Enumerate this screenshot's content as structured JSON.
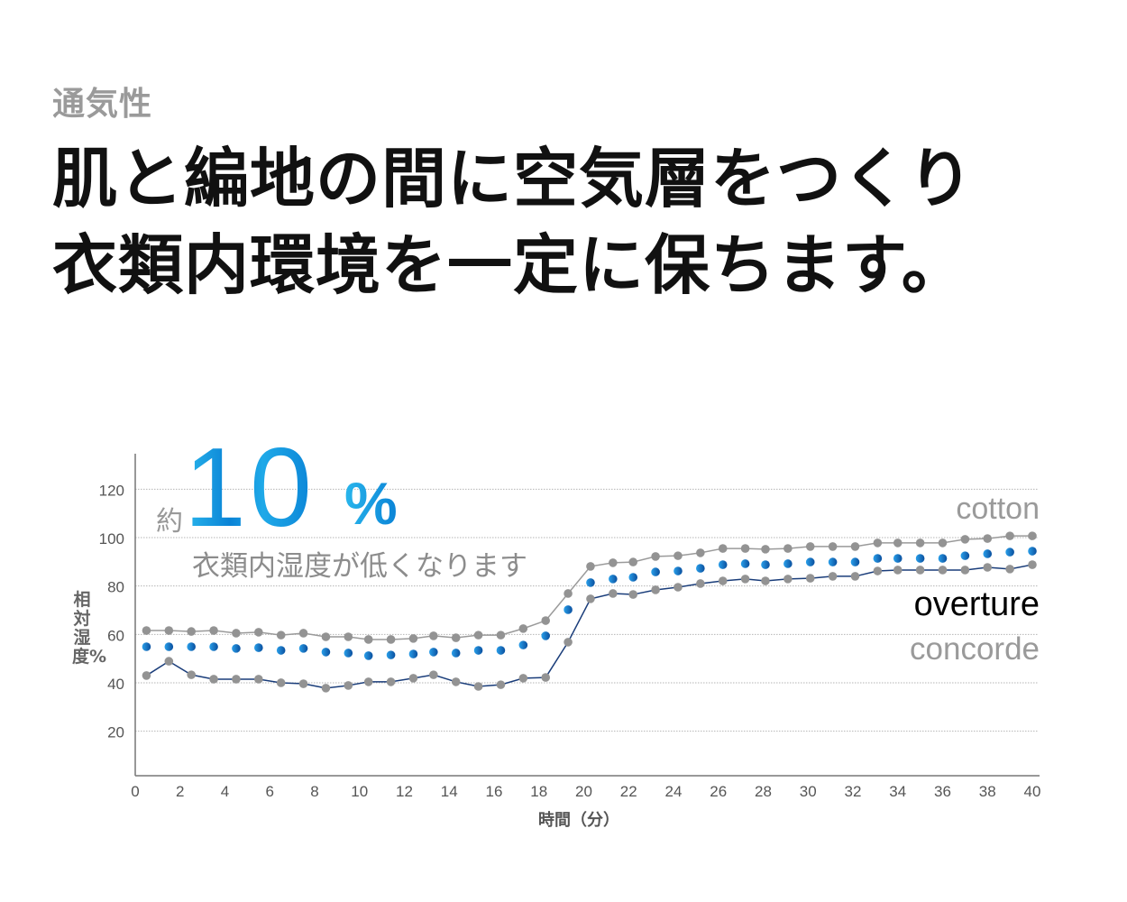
{
  "eyebrow": "通気性",
  "headline": [
    "肌と編地の間に空気層をつくり",
    "衣類内環境を一定に保ちます。"
  ],
  "callout": {
    "prefix": "約",
    "number": "10",
    "unit": "%",
    "text": "衣類内湿度が低くなります"
  },
  "colors": {
    "cotton": "#9a9a9a",
    "overture": "#0a6cc4",
    "concorde_line": "#1a3d7a",
    "marker_gray": "#939393",
    "accent": "#0a83d6"
  },
  "chart_data": {
    "type": "line",
    "xlabel": "時間（分）",
    "ylabel": "相対湿度%",
    "xlim": [
      0,
      40
    ],
    "ylim": [
      0,
      130
    ],
    "xticks": [
      "0",
      "2",
      "4",
      "6",
      "8",
      "10",
      "12",
      "14",
      "16",
      "18",
      "20",
      "22",
      "24",
      "26",
      "28",
      "30",
      "32",
      "34",
      "36",
      "38",
      "40"
    ],
    "yticks": [
      "20",
      "40",
      "60",
      "80",
      "100",
      "120"
    ],
    "grid": true,
    "legend_placement": "right",
    "x": [
      0.5,
      1.5,
      2.5,
      3.5,
      4.5,
      5.5,
      6.5,
      7.5,
      8.5,
      9.5,
      10.4,
      11.4,
      12.4,
      13.3,
      14.3,
      15.3,
      16.3,
      17.3,
      18.3,
      19.3,
      20.3,
      21.3,
      22.2,
      23.2,
      24.2,
      25.2,
      26.2,
      27.2,
      28.1,
      29.1,
      30.1,
      31.1,
      32.1,
      33.1,
      34.0,
      35.0,
      36.0,
      37.0,
      38.0,
      39.0,
      40.0
    ],
    "series": [
      {
        "name": "cotton",
        "style": "gray line with gray markers",
        "values": [
          61.6,
          61.6,
          61.2,
          61.6,
          60.5,
          60.9,
          59.7,
          60.5,
          59.0,
          59.0,
          57.9,
          57.9,
          58.3,
          59.4,
          58.6,
          59.7,
          59.7,
          62.4,
          65.7,
          76.9,
          88.1,
          89.6,
          89.9,
          92.2,
          92.5,
          93.7,
          95.5,
          95.5,
          95.2,
          95.5,
          96.3,
          96.3,
          96.3,
          97.8,
          97.8,
          97.8,
          97.8,
          99.3,
          99.6,
          100.7,
          100.7
        ]
      },
      {
        "name": "overture",
        "style": "blue dots",
        "values": [
          54.9,
          54.9,
          54.9,
          54.9,
          54.2,
          54.5,
          53.4,
          54.2,
          52.7,
          52.3,
          51.2,
          51.5,
          51.9,
          52.7,
          52.3,
          53.4,
          53.4,
          55.6,
          59.4,
          70.2,
          81.4,
          82.9,
          83.6,
          85.8,
          86.2,
          87.3,
          88.8,
          89.2,
          88.8,
          89.2,
          89.9,
          89.9,
          89.9,
          91.4,
          91.4,
          91.4,
          91.4,
          92.5,
          93.3,
          94.0,
          94.4
        ]
      },
      {
        "name": "concorde",
        "style": "navy line with gray markers",
        "values": [
          43.0,
          48.9,
          43.3,
          41.5,
          41.5,
          41.5,
          40.0,
          39.6,
          37.8,
          38.9,
          40.4,
          40.4,
          41.9,
          43.3,
          40.4,
          38.5,
          39.2,
          41.9,
          42.2,
          56.8,
          74.7,
          76.9,
          76.5,
          78.4,
          79.5,
          81.0,
          82.1,
          82.9,
          82.1,
          82.9,
          83.2,
          84.0,
          84.0,
          86.2,
          86.6,
          86.6,
          86.6,
          86.6,
          87.7,
          87.0,
          88.8
        ]
      }
    ]
  }
}
